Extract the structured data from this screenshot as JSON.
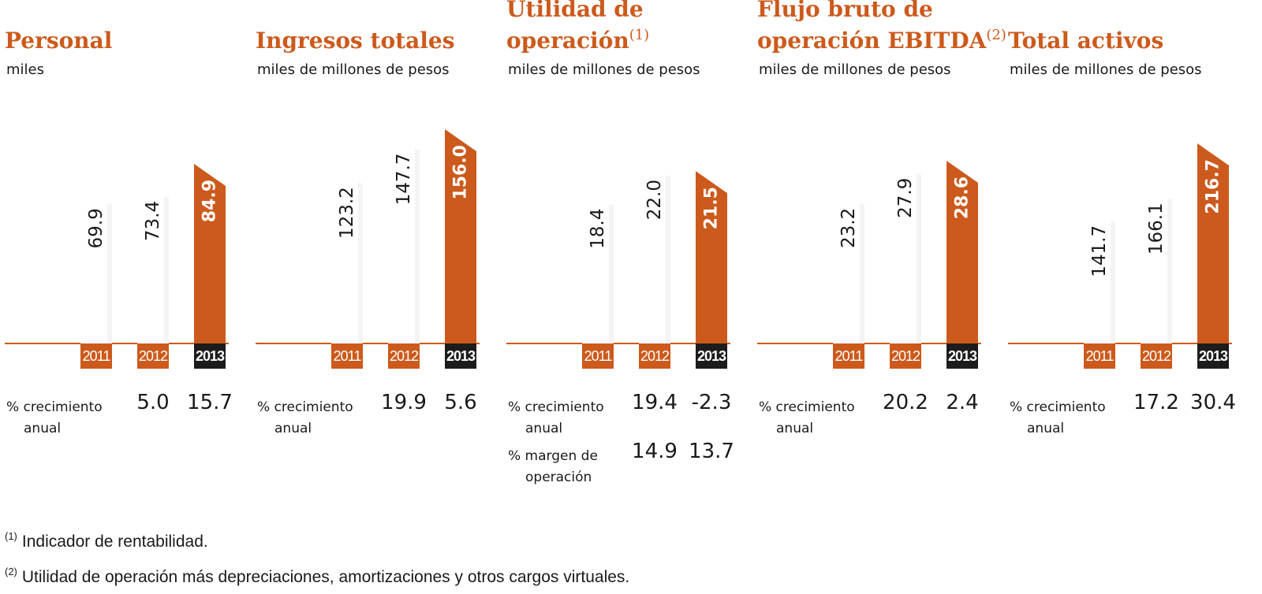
{
  "colors": {
    "accent": "#cc5a1c",
    "dark": "#1c1c1c",
    "text": "#1a1a1a"
  },
  "common": {
    "growth_label": [
      "% crecimiento",
      "anual"
    ]
  },
  "chart_data": [
    {
      "type": "bar",
      "title": "Personal",
      "title_sup": "",
      "subtitle": "miles",
      "categories": [
        "2011",
        "2012",
        "2013"
      ],
      "values": [
        69.9,
        73.4,
        84.9
      ],
      "value_labels": [
        "69.9",
        "73.4",
        "84.9"
      ],
      "growth": [
        "",
        "5.0",
        "15.7"
      ]
    },
    {
      "type": "bar",
      "title": "Ingresos totales",
      "title_sup": "",
      "subtitle": "miles de millones de pesos",
      "categories": [
        "2011",
        "2012",
        "2013"
      ],
      "values": [
        123.2,
        147.7,
        156.0
      ],
      "value_labels": [
        "123.2",
        "147.7",
        "156.0"
      ],
      "growth": [
        "",
        "19.9",
        "5.6"
      ]
    },
    {
      "type": "bar",
      "title": "Utilidad de\noperación",
      "title_sup": "(1)",
      "subtitle": "miles de millones de pesos",
      "categories": [
        "2011",
        "2012",
        "2013"
      ],
      "values": [
        18.4,
        22.0,
        21.5
      ],
      "value_labels": [
        "18.4",
        "22.0",
        "21.5"
      ],
      "growth": [
        "",
        "19.4",
        "-2.3"
      ],
      "margin_label": [
        "% margen de",
        "operación"
      ],
      "margin": [
        "",
        "14.9",
        "13.7"
      ]
    },
    {
      "type": "bar",
      "title": "Flujo bruto de\noperación EBITDA",
      "title_sup": "(2)",
      "subtitle": "miles de millones de pesos",
      "categories": [
        "2011",
        "2012",
        "2013"
      ],
      "values": [
        23.2,
        27.9,
        28.6
      ],
      "value_labels": [
        "23.2",
        "27.9",
        "28.6"
      ],
      "growth": [
        "",
        "20.2",
        "2.4"
      ]
    },
    {
      "type": "bar",
      "title": "Total activos",
      "title_sup": "",
      "subtitle": "miles de millones de pesos",
      "categories": [
        "2011",
        "2012",
        "2013"
      ],
      "values": [
        141.7,
        166.1,
        216.7
      ],
      "value_labels": [
        "141.7",
        "166.1",
        "216.7"
      ],
      "growth": [
        "",
        "17.2",
        "30.4"
      ]
    }
  ],
  "footnotes": [
    {
      "mark": "(1)",
      "text": "Indicador de rentabilidad."
    },
    {
      "mark": "(2)",
      "text": "Utilidad de operación más depreciaciones, amortizaciones y otros cargos virtuales."
    }
  ]
}
